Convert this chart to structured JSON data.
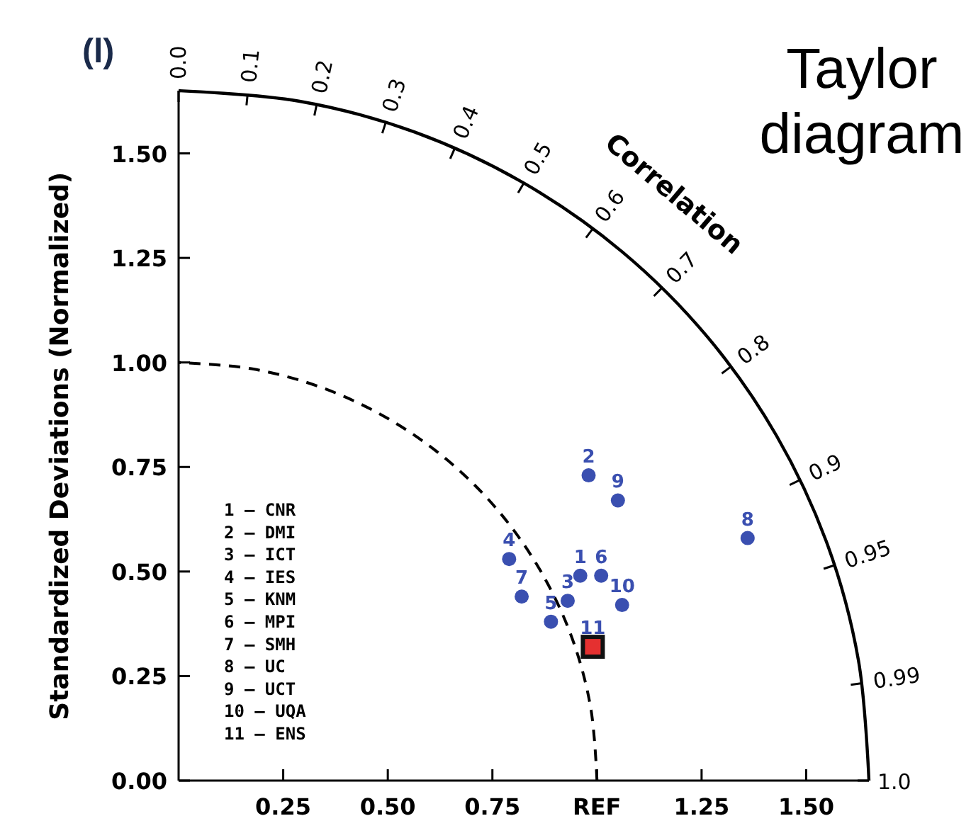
{
  "chart_data": {
    "type": "scatter",
    "title": "Taylor diagram",
    "ylabel": "Standardized Deviations (Normalized)",
    "annotations": [
      "(l)",
      "1 – CNR",
      "2 – DMI",
      "3 – ICT",
      "4 – IES",
      "5 – KNM",
      "6 – MPI",
      "7 – SMH",
      "8 – UC",
      "9 – UCT",
      "10 – UQA",
      "11 – ENS",
      "Correlation",
      {
        "text": "0.0",
        "x": 0,
        "y": 1.65
      },
      {
        "text": "0.1",
        "x": 0.165,
        "y": 1.642
      },
      {
        "text": "0.2",
        "x": 0.33,
        "y": 1.617
      },
      {
        "text": "0.3",
        "x": 0.495,
        "y": 1.574
      },
      {
        "text": "0.4",
        "x": 0.66,
        "y": 1.512
      },
      {
        "text": "0.5",
        "x": 0.825,
        "y": 1.429
      },
      {
        "text": "0.6",
        "x": 0.99,
        "y": 1.32
      },
      {
        "text": "0.7",
        "x": 1.155,
        "y": 1.178
      },
      {
        "text": "0.8",
        "x": 1.32,
        "y": 0.99
      },
      {
        "text": "0.9",
        "x": 1.485,
        "y": 0.719
      },
      {
        "text": "0.95",
        "x": 1.5675,
        "y": 0.515
      },
      {
        "text": "0.99",
        "x": 1.6335,
        "y": 0.233
      },
      {
        "text": "1.0",
        "x": 1.65,
        "y": 0
      }
    ],
    "xlim": [
      0,
      1.65
    ],
    "ylim": [
      0,
      1.65
    ],
    "xticks": [
      0.25,
      {
        "value": 0.5,
        "label": "0.50"
      },
      0.75,
      {
        "value": 1,
        "label": "REF"
      },
      1.25,
      {
        "value": 1.5,
        "label": "1.50"
      }
    ],
    "yticks": [
      {
        "value": 0,
        "label": "0.00"
      },
      0.25,
      {
        "value": 0.5,
        "label": "0.50"
      },
      0.75,
      {
        "value": 1,
        "label": "1.00"
      },
      1.25,
      {
        "value": 1.5,
        "label": "1.50"
      }
    ],
    "series": [
      {
        "type": "line",
        "color": "#000000",
        "line_style": "solid",
        "x": [
          1.65,
          1.625,
          1.551,
          1.429,
          1.264,
          1.061,
          0.825,
          0.564,
          0.287,
          0
        ],
        "values": [
          0,
          0.287,
          0.564,
          0.825,
          1.061,
          1.264,
          1.429,
          1.551,
          1.625,
          1.65
        ]
      },
      {
        "type": "line",
        "color": "#000000",
        "line_style": "dashed",
        "x": [
          1,
          0.985,
          0.94,
          0.866,
          0.766,
          0.643,
          0.5,
          0.342,
          0.174,
          0
        ],
        "values": [
          0,
          0.174,
          0.342,
          0.5,
          0.643,
          0.766,
          0.866,
          0.94,
          0.985,
          1
        ]
      },
      {
        "name": "1",
        "color": "#3a4fb0",
        "marker": "circle",
        "x": [
          0.96
        ],
        "values": [
          0.49
        ]
      },
      {
        "name": "2",
        "color": "#3a4fb0",
        "marker": "circle",
        "x": [
          0.98
        ],
        "values": [
          0.73
        ]
      },
      {
        "name": "3",
        "color": "#3a4fb0",
        "marker": "circle",
        "x": [
          0.93
        ],
        "values": [
          0.43
        ]
      },
      {
        "name": "4",
        "color": "#3a4fb0",
        "marker": "circle",
        "x": [
          0.79
        ],
        "values": [
          0.53
        ]
      },
      {
        "name": "5",
        "color": "#3a4fb0",
        "marker": "circle",
        "x": [
          0.89
        ],
        "values": [
          0.38
        ]
      },
      {
        "name": "6",
        "color": "#3a4fb0",
        "marker": "circle",
        "x": [
          1.01
        ],
        "values": [
          0.49
        ]
      },
      {
        "name": "7",
        "color": "#3a4fb0",
        "marker": "circle",
        "x": [
          0.82
        ],
        "values": [
          0.44
        ]
      },
      {
        "name": "8",
        "color": "#3a4fb0",
        "marker": "circle",
        "x": [
          1.36
        ],
        "values": [
          0.58
        ]
      },
      {
        "name": "9",
        "color": "#3a4fb0",
        "marker": "circle",
        "x": [
          1.05
        ],
        "values": [
          0.67
        ]
      },
      {
        "name": "10",
        "color": "#3a4fb0",
        "marker": "circle",
        "x": [
          1.06
        ],
        "values": [
          0.42
        ]
      },
      {
        "name": "11",
        "color": "#e53030",
        "marker": "square",
        "x": [
          0.99
        ],
        "values": [
          0.32
        ]
      }
    ]
  }
}
